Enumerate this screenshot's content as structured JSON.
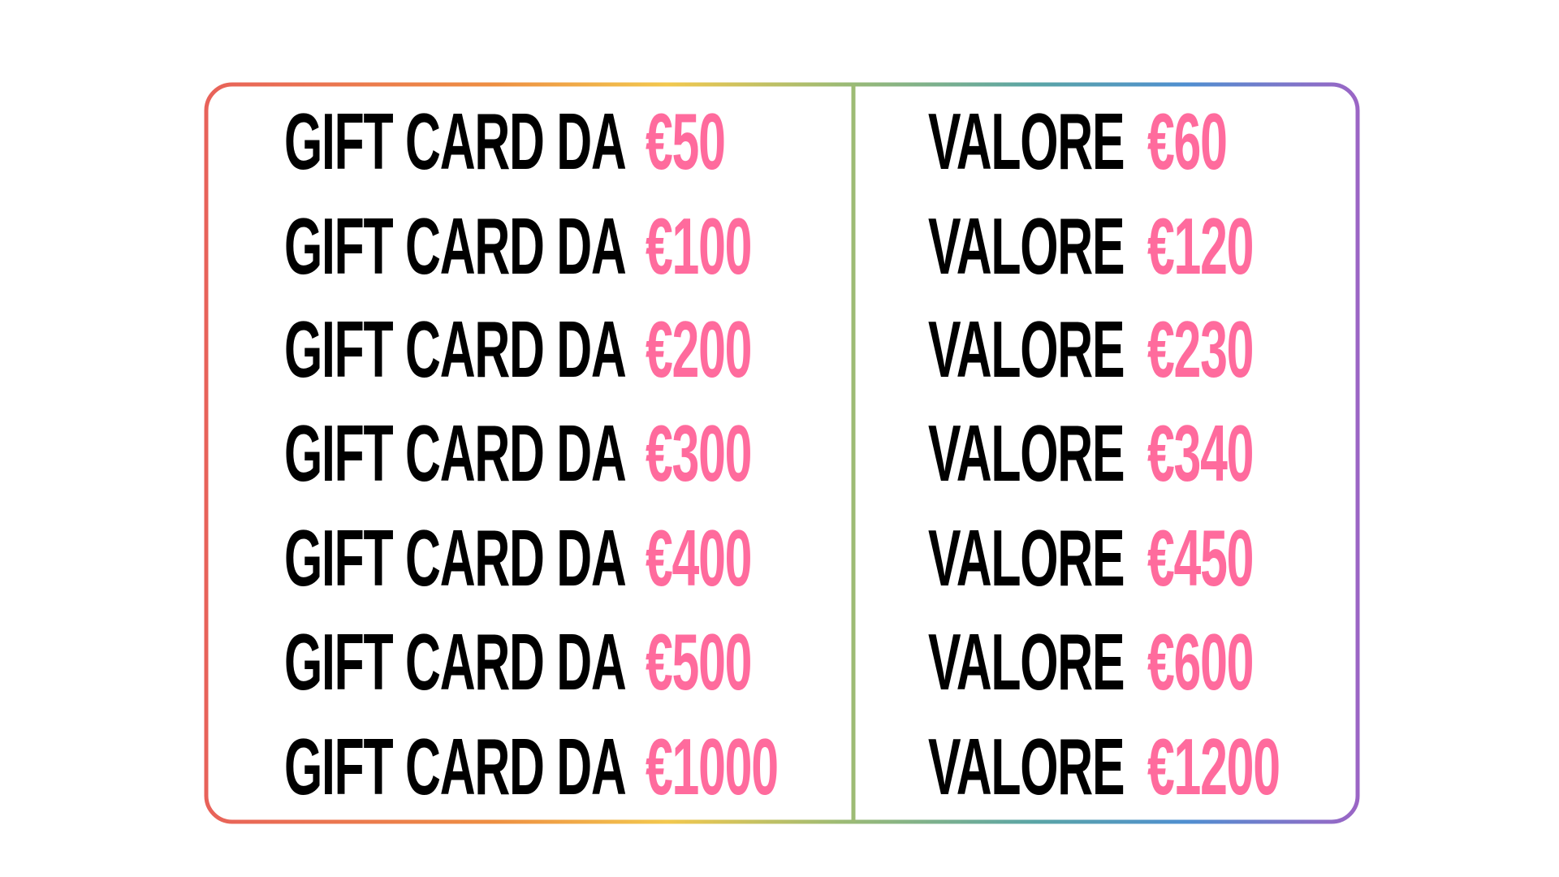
{
  "table": {
    "colors": {
      "label": "#000000",
      "amount": "#ff6b9d",
      "border_gradient": [
        "#e8625a",
        "#ee8f42",
        "#f2c84e",
        "#9dbb74",
        "#5aa5a6",
        "#4f8fd0",
        "#9b65c5"
      ]
    },
    "rows": [
      {
        "left_label": "GIFT CARD DA",
        "left_amount": "€50",
        "right_label": "VALORE",
        "right_amount": "€60"
      },
      {
        "left_label": "GIFT CARD DA",
        "left_amount": "€100",
        "right_label": "VALORE",
        "right_amount": "€120"
      },
      {
        "left_label": "GIFT CARD DA",
        "left_amount": "€200",
        "right_label": "VALORE",
        "right_amount": "€230"
      },
      {
        "left_label": "GIFT CARD DA",
        "left_amount": "€300",
        "right_label": "VALORE",
        "right_amount": "€340"
      },
      {
        "left_label": "GIFT CARD DA",
        "left_amount": "€400",
        "right_label": "VALORE",
        "right_amount": "€450"
      },
      {
        "left_label": "GIFT CARD DA",
        "left_amount": "€500",
        "right_label": "VALORE",
        "right_amount": "€600"
      },
      {
        "left_label": "GIFT CARD DA",
        "left_amount": "€1000",
        "right_label": "VALORE",
        "right_amount": "€1200"
      }
    ]
  }
}
